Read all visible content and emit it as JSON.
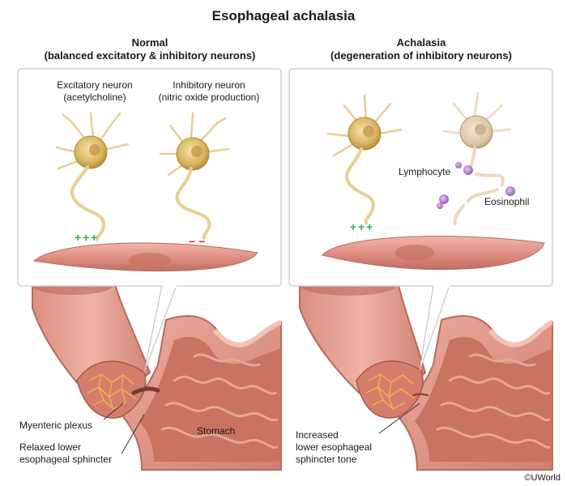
{
  "title": "Esophageal achalasia",
  "panels": {
    "normal": {
      "heading": "Normal",
      "subheading": "(balanced excitatory & inhibitory neurons)",
      "excitatory_label": "Excitatory neuron",
      "excitatory_sub": "(acetylcholine)",
      "inhibitory_label": "Inhibitory neuron",
      "inhibitory_sub": "(nitric oxide production)",
      "excitatory_signal": "+ + +",
      "inhibitory_signal": "− −",
      "myenteric_label": "Myenteric plexus",
      "sphincter_label_1": "Relaxed lower",
      "sphincter_label_2": "esophageal sphincter",
      "stomach_label": "Stomach"
    },
    "achalasia": {
      "heading": "Achalasia",
      "subheading": "(degeneration of inhibitory neurons)",
      "excitatory_signal": "+ + +",
      "lymphocyte_label": "Lymphocyte",
      "eosinophil_label": "Eosinophil",
      "sphincter_label_1": "Increased",
      "sphincter_label_2": "lower esophageal",
      "sphincter_label_3": "sphincter tone"
    }
  },
  "copyright": "©UWorld",
  "colors": {
    "neuron": "#e8cf8f",
    "neuron_body": "#d9b460",
    "muscle": "#e09488",
    "tissue": "#e3a08f",
    "stomach_inner": "#c97a6e",
    "plexus": "#e6b54a",
    "plus": "#2db34a",
    "minus": "#d9262a",
    "inflammatory": "#a878c2"
  }
}
